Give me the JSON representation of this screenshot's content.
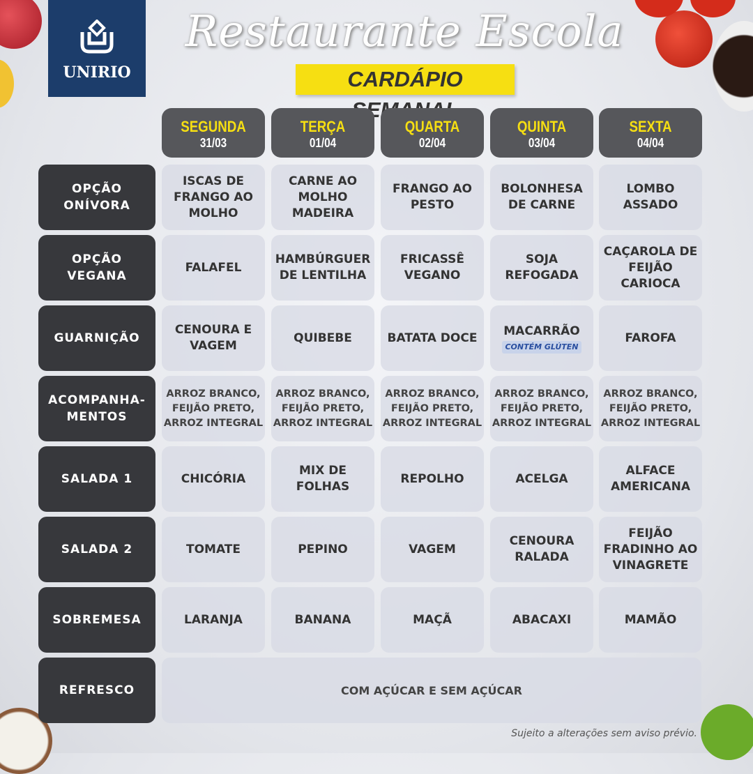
{
  "header": {
    "logo_text": "UNIRIO",
    "title": "Restaurante Escola",
    "subtitle": "CARDÁPIO SEMANAL"
  },
  "days": [
    {
      "name": "SEGUNDA",
      "date": "31/03"
    },
    {
      "name": "TERÇA",
      "date": "01/04"
    },
    {
      "name": "QUARTA",
      "date": "02/04"
    },
    {
      "name": "QUINTA",
      "date": "03/04"
    },
    {
      "name": "SEXTA",
      "date": "04/04"
    }
  ],
  "rows": [
    {
      "label": "OPÇÃO\nONÍVORA",
      "cells": [
        "ISCAS DE\nFRANGO AO\nMOLHO",
        "CARNE AO\nMOLHO\nMADEIRA",
        "FRANGO AO\nPESTO",
        "BOLONHESA\nDE CARNE",
        "LOMBO\nASSADO"
      ]
    },
    {
      "label": "OPÇÃO\nVEGANA",
      "cells": [
        "FALAFEL",
        "HAMBÚRGUER\nDE LENTILHA",
        "FRICASSÊ\nVEGANO",
        "SOJA\nREFOGADA",
        "CAÇAROLA DE\nFEIJÃO\nCARIOCA"
      ]
    },
    {
      "label": "GUARNIÇÃO",
      "cells": [
        "CENOURA E\nVAGEM",
        "QUIBEBE",
        "BATATA DOCE",
        "MACARRÃO",
        "FAROFA"
      ],
      "badges": [
        "",
        "",
        "",
        "CONTÉM GLÚTEN",
        ""
      ]
    },
    {
      "label": "ACOMPANHA-\nMENTOS",
      "small": true,
      "cells": [
        "ARROZ BRANCO,\nFEIJÃO PRETO,\nARROZ INTEGRAL",
        "ARROZ BRANCO,\nFEIJÃO PRETO,\nARROZ INTEGRAL",
        "ARROZ BRANCO,\nFEIJÃO PRETO,\nARROZ INTEGRAL",
        "ARROZ BRANCO,\nFEIJÃO PRETO,\nARROZ INTEGRAL",
        "ARROZ BRANCO,\nFEIJÃO PRETO,\nARROZ INTEGRAL"
      ]
    },
    {
      "label": "SALADA 1",
      "cells": [
        "CHICÓRIA",
        "MIX DE FOLHAS",
        "REPOLHO",
        "ACELGA",
        "ALFACE\nAMERICANA"
      ]
    },
    {
      "label": "SALADA 2",
      "cells": [
        "TOMATE",
        "PEPINO",
        "VAGEM",
        "CENOURA\nRALADA",
        "FEIJÃO\nFRADINHO AO\nVINAGRETE"
      ]
    },
    {
      "label": "SOBREMESA",
      "cells": [
        "LARANJA",
        "BANANA",
        "MAÇÃ",
        "ABACAXI",
        "MAMÃO"
      ]
    },
    {
      "label": "REFRESCO",
      "merged": "COM AÇÚCAR E SEM AÇÚCAR"
    }
  ],
  "footer": "Sujeito a alterações sem aviso prévio.",
  "colors": {
    "accent": "#f6df12",
    "dark": "#37383c",
    "header_bg": "#56575b",
    "logo_bg": "#1c3d6b",
    "badge_text": "#2a4fa0"
  }
}
